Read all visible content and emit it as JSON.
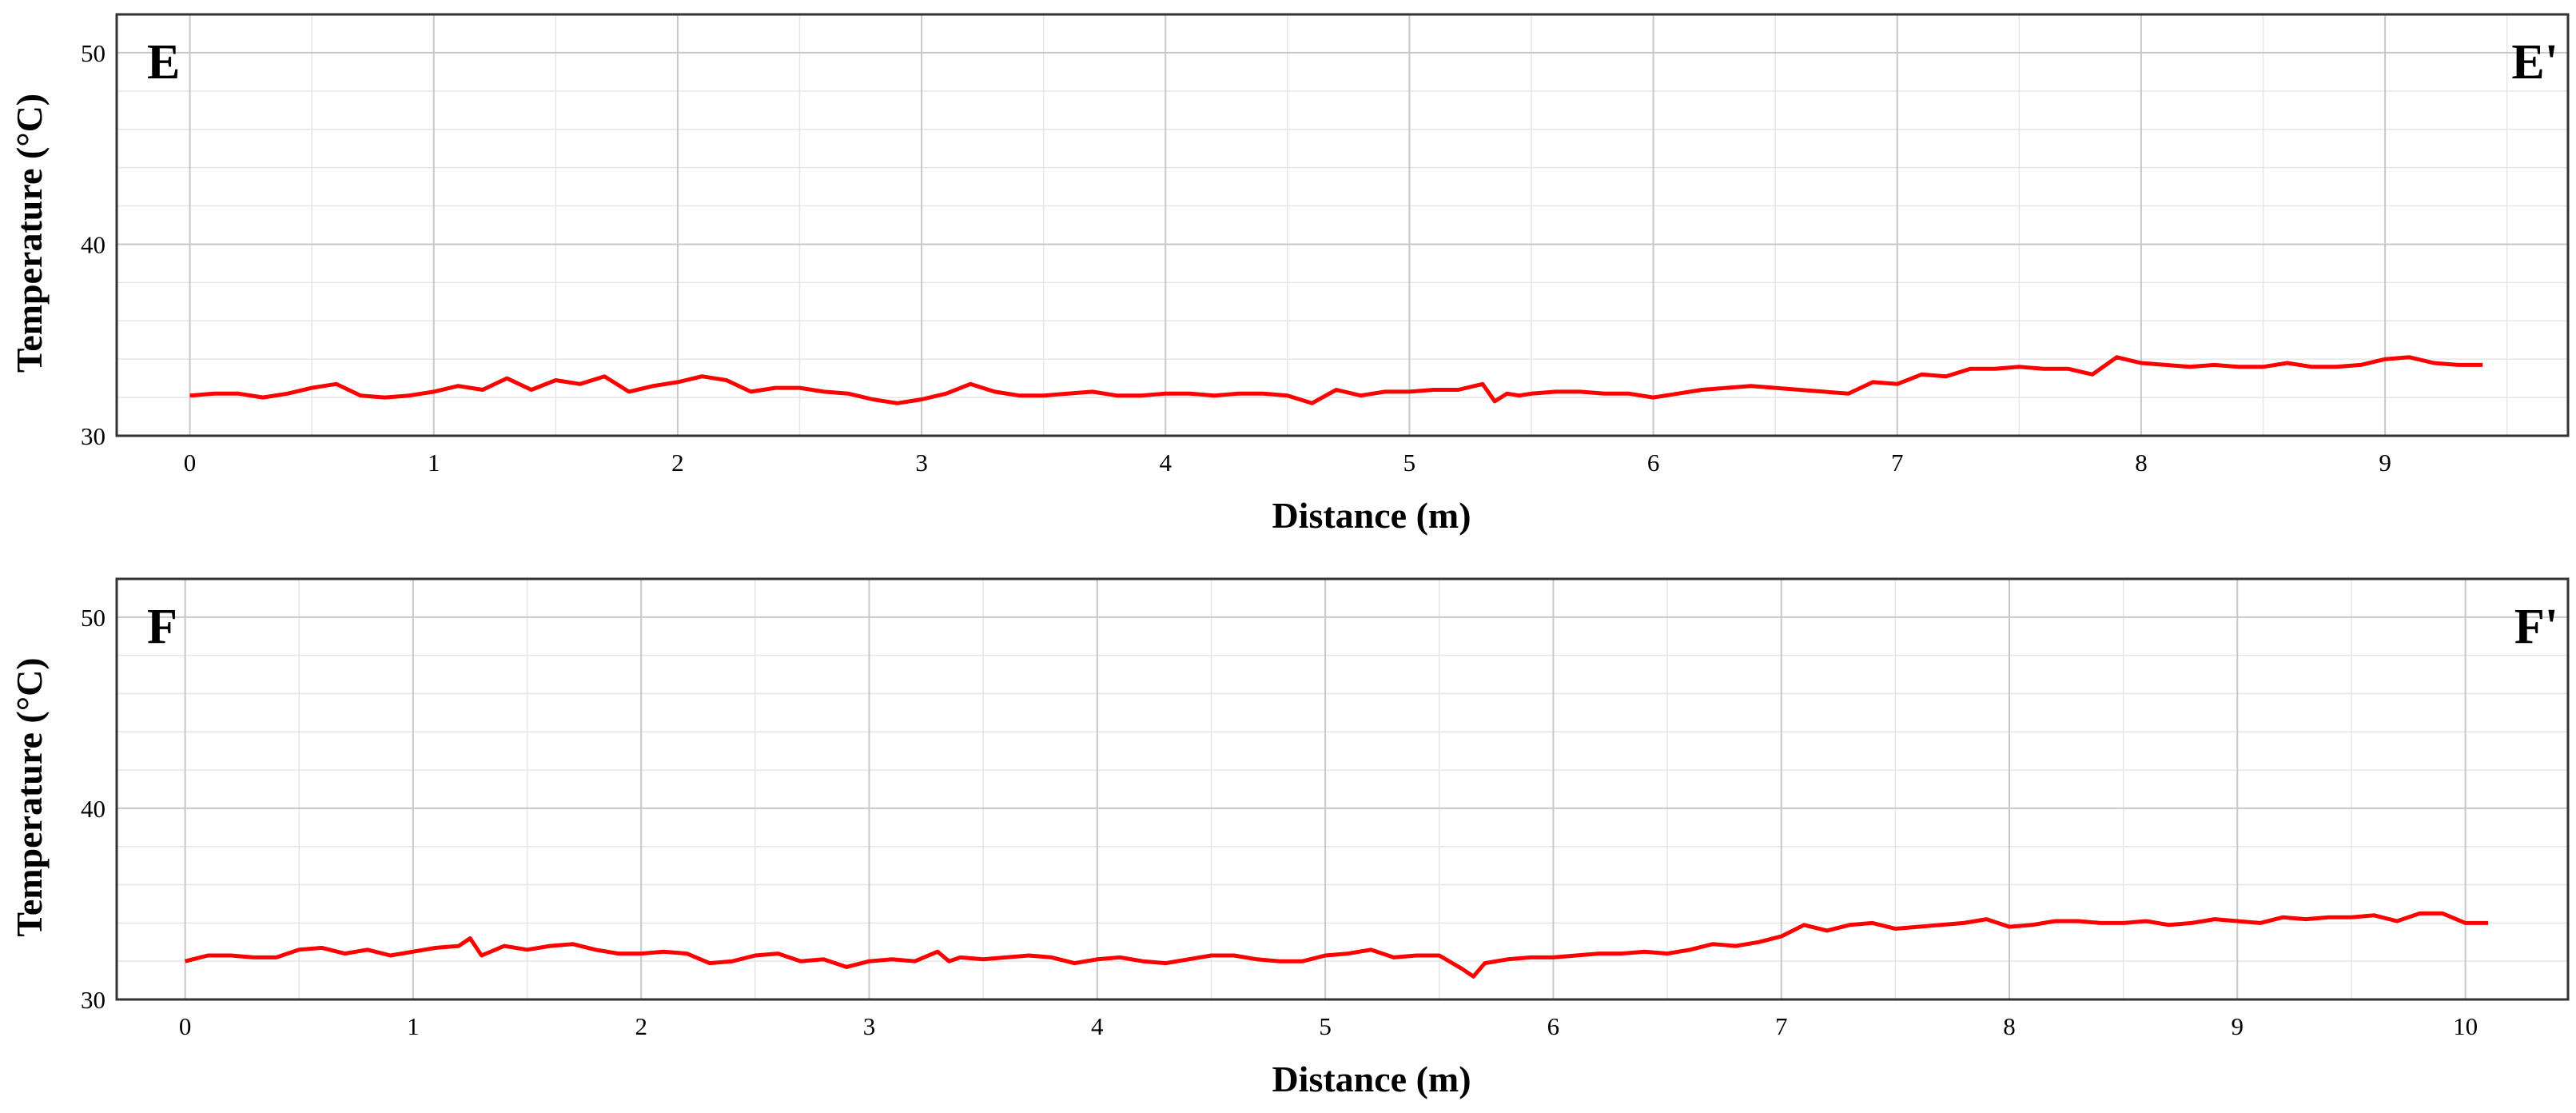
{
  "chart_data": [
    {
      "type": "line",
      "left_label": "E",
      "right_label": "E'",
      "xlabel": "Distance (m)",
      "ylabel": "Temperature (°C)",
      "xlim": [
        -0.3,
        9.75
      ],
      "ylim": [
        30,
        52
      ],
      "xticks": [
        "0",
        "1",
        "2",
        "3",
        "4",
        "5",
        "6",
        "7",
        "8",
        "9"
      ],
      "yticks": [
        "30",
        "40",
        "50"
      ],
      "grid": true,
      "color": "#ff0000",
      "series": [
        {
          "x": [
            0,
            0.1,
            0.2,
            0.3,
            0.4,
            0.5,
            0.55,
            0.6,
            0.7,
            0.8,
            0.9,
            1.0,
            1.1,
            1.2,
            1.3,
            1.4,
            1.5,
            1.6,
            1.7,
            1.8,
            1.9,
            2.0,
            2.1,
            2.2,
            2.3,
            2.4,
            2.5,
            2.6,
            2.7,
            2.8,
            2.9,
            3.0,
            3.1,
            3.2,
            3.3,
            3.4,
            3.5,
            3.6,
            3.7,
            3.8,
            3.9,
            4.0,
            4.1,
            4.2,
            4.3,
            4.4,
            4.5,
            4.6,
            4.7,
            4.8,
            4.9,
            5.0,
            5.1,
            5.2,
            5.3,
            5.35,
            5.4,
            5.45,
            5.5,
            5.6,
            5.7,
            5.8,
            5.9,
            6.0,
            6.1,
            6.2,
            6.3,
            6.4,
            6.5,
            6.6,
            6.7,
            6.8,
            6.9,
            7.0,
            7.1,
            7.2,
            7.3,
            7.4,
            7.5,
            7.6,
            7.7,
            7.8,
            7.9,
            8.0,
            8.1,
            8.2,
            8.3,
            8.4,
            8.5,
            8.6,
            8.7,
            8.8,
            8.9,
            9.0,
            9.1,
            9.2,
            9.3,
            9.4
          ],
          "y": [
            32.1,
            32.2,
            32.2,
            32.0,
            32.2,
            32.5,
            32.6,
            32.7,
            32.1,
            32.0,
            32.1,
            32.3,
            32.6,
            32.4,
            33.0,
            32.4,
            32.9,
            32.7,
            33.1,
            32.3,
            32.6,
            32.8,
            33.1,
            32.9,
            32.3,
            32.5,
            32.5,
            32.3,
            32.2,
            31.9,
            31.7,
            31.9,
            32.2,
            32.7,
            32.3,
            32.1,
            32.1,
            32.2,
            32.3,
            32.1,
            32.1,
            32.2,
            32.2,
            32.1,
            32.2,
            32.2,
            32.1,
            31.7,
            32.4,
            32.1,
            32.3,
            32.3,
            32.4,
            32.4,
            32.7,
            31.8,
            32.2,
            32.1,
            32.2,
            32.3,
            32.3,
            32.2,
            32.2,
            32.0,
            32.2,
            32.4,
            32.5,
            32.6,
            32.5,
            32.4,
            32.3,
            32.2,
            32.8,
            32.7,
            33.2,
            33.1,
            33.5,
            33.5,
            33.6,
            33.5,
            33.5,
            33.2,
            34.1,
            33.8,
            33.7,
            33.6,
            33.7,
            33.6,
            33.6,
            33.8,
            33.6,
            33.6,
            33.7,
            34.0,
            34.1,
            33.8,
            33.7,
            33.7
          ]
        }
      ]
    },
    {
      "type": "line",
      "left_label": "F",
      "right_label": "F'",
      "xlabel": "Distance (m)",
      "ylabel": "Temperature (°C)",
      "xlim": [
        -0.3,
        10.45
      ],
      "ylim": [
        30,
        52
      ],
      "xticks": [
        "0",
        "1",
        "2",
        "3",
        "4",
        "5",
        "6",
        "7",
        "8",
        "9",
        "10"
      ],
      "yticks": [
        "30",
        "40",
        "50"
      ],
      "grid": true,
      "color": "#ff0000",
      "series": [
        {
          "x": [
            0,
            0.1,
            0.2,
            0.3,
            0.4,
            0.5,
            0.6,
            0.7,
            0.8,
            0.9,
            1.0,
            1.1,
            1.2,
            1.25,
            1.3,
            1.4,
            1.5,
            1.6,
            1.7,
            1.8,
            1.9,
            2.0,
            2.1,
            2.2,
            2.3,
            2.4,
            2.5,
            2.6,
            2.7,
            2.8,
            2.9,
            3.0,
            3.1,
            3.2,
            3.3,
            3.35,
            3.4,
            3.5,
            3.6,
            3.7,
            3.8,
            3.9,
            4.0,
            4.1,
            4.2,
            4.3,
            4.4,
            4.5,
            4.6,
            4.7,
            4.8,
            4.9,
            5.0,
            5.1,
            5.2,
            5.3,
            5.4,
            5.5,
            5.6,
            5.65,
            5.7,
            5.8,
            5.9,
            6.0,
            6.1,
            6.2,
            6.3,
            6.4,
            6.5,
            6.6,
            6.7,
            6.8,
            6.9,
            7.0,
            7.1,
            7.2,
            7.3,
            7.4,
            7.5,
            7.6,
            7.7,
            7.8,
            7.9,
            8.0,
            8.1,
            8.2,
            8.3,
            8.4,
            8.5,
            8.6,
            8.7,
            8.8,
            8.9,
            9.0,
            9.1,
            9.2,
            9.3,
            9.4,
            9.5,
            9.6,
            9.7,
            9.8,
            9.9,
            10.0,
            10.1
          ],
          "y": [
            32.0,
            32.3,
            32.3,
            32.2,
            32.2,
            32.6,
            32.7,
            32.4,
            32.6,
            32.3,
            32.5,
            32.7,
            32.8,
            33.2,
            32.3,
            32.8,
            32.6,
            32.8,
            32.9,
            32.6,
            32.4,
            32.4,
            32.5,
            32.4,
            31.9,
            32.0,
            32.3,
            32.4,
            32.0,
            32.1,
            31.7,
            32.0,
            32.1,
            32.0,
            32.5,
            32.0,
            32.2,
            32.1,
            32.2,
            32.3,
            32.2,
            31.9,
            32.1,
            32.2,
            32.0,
            31.9,
            32.1,
            32.3,
            32.3,
            32.1,
            32.0,
            32.0,
            32.3,
            32.4,
            32.6,
            32.2,
            32.3,
            32.3,
            31.6,
            31.2,
            31.9,
            32.1,
            32.2,
            32.2,
            32.3,
            32.4,
            32.4,
            32.5,
            32.4,
            32.6,
            32.9,
            32.8,
            33.0,
            33.3,
            33.9,
            33.6,
            33.9,
            34.0,
            33.7,
            33.8,
            33.9,
            34.0,
            34.2,
            33.8,
            33.9,
            34.1,
            34.1,
            34.0,
            34.0,
            34.1,
            33.9,
            34.0,
            34.2,
            34.1,
            34.0,
            34.3,
            34.2,
            34.3,
            34.3,
            34.4,
            34.1,
            34.5,
            34.5,
            34.0,
            34.0
          ]
        }
      ]
    }
  ]
}
